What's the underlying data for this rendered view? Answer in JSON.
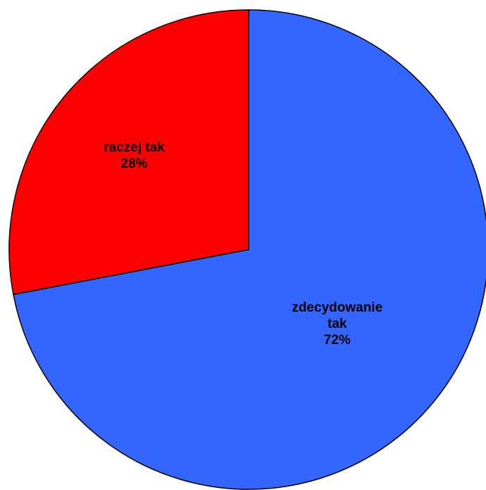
{
  "chart_data": {
    "type": "pie",
    "slices": [
      {
        "label": "zdecydowanie tak",
        "label_lines": [
          "zdecydowanie",
          "tak"
        ],
        "value": 72,
        "percent_label": "72%",
        "color": "#3366FF"
      },
      {
        "label": "raczej tak",
        "label_lines": [
          "raczej tak"
        ],
        "value": 28,
        "percent_label": "28%",
        "color": "#FF0000"
      }
    ],
    "start": "12 o'clock",
    "direction": "clockwise",
    "legend": "none",
    "outline_color": "#000000"
  }
}
